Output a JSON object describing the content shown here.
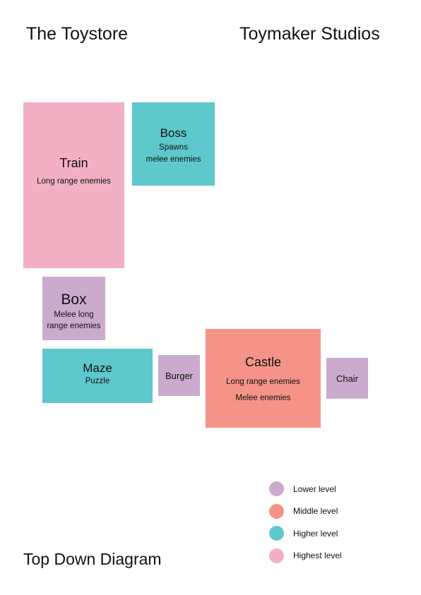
{
  "header": {
    "left_title": "The Toystore",
    "right_title": "Toymaker Studios"
  },
  "footer": {
    "title": "Top Down Diagram"
  },
  "colors": {
    "lower": "#cbabcd",
    "middle": "#f59388",
    "higher": "#5ec8cc",
    "highest": "#f3b0c4"
  },
  "rooms": [
    {
      "id": "train",
      "name": "Train",
      "level": "highest",
      "desc": [
        "Long range enemies"
      ]
    },
    {
      "id": "boss",
      "name": "Boss",
      "level": "higher",
      "desc": [
        "Spawns",
        "melee enemies"
      ]
    },
    {
      "id": "box",
      "name": "Box",
      "level": "lower",
      "desc": [
        "Melee long",
        "range enemies"
      ]
    },
    {
      "id": "maze",
      "name": "Maze",
      "level": "higher",
      "desc": [
        "Puzzle"
      ]
    },
    {
      "id": "burger",
      "name": "Burger",
      "level": "lower",
      "desc": []
    },
    {
      "id": "castle",
      "name": "Castle",
      "level": "middle",
      "desc": [
        "Long range enemies",
        "Melee enemies"
      ]
    },
    {
      "id": "chair",
      "name": "Chair",
      "level": "lower",
      "desc": []
    }
  ],
  "legend": [
    {
      "level": "lower",
      "label": "Lower level"
    },
    {
      "level": "middle",
      "label": "Middle level"
    },
    {
      "level": "higher",
      "label": "Higher level"
    },
    {
      "level": "highest",
      "label": "Highest level"
    }
  ]
}
